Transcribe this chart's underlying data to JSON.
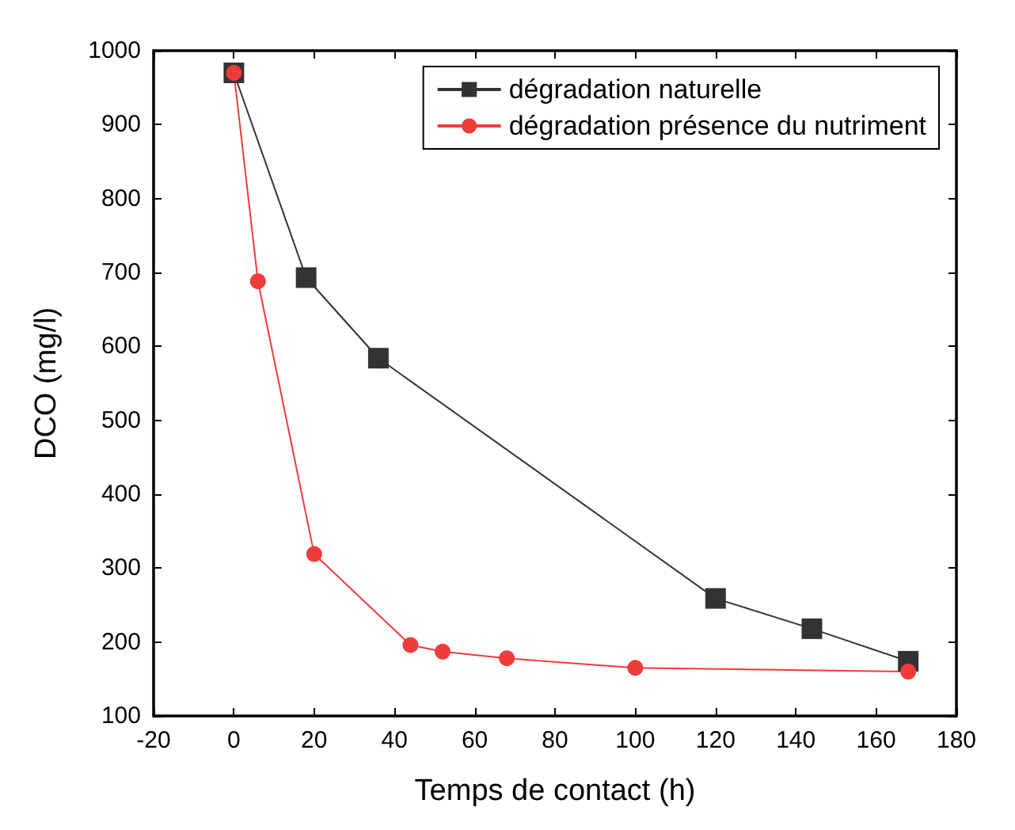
{
  "chart_data": {
    "type": "line",
    "xlabel": "Temps de contact (h)",
    "ylabel": "DCO (mg/l)",
    "xlim": [
      -20,
      180
    ],
    "xticks": [
      -20,
      0,
      20,
      40,
      60,
      80,
      100,
      120,
      140,
      160,
      180
    ],
    "ylim": [
      100,
      1000
    ],
    "yticks": [
      100,
      200,
      300,
      400,
      500,
      600,
      700,
      800,
      900,
      1000
    ],
    "grid": false,
    "legend": "top right",
    "line_style": "solid",
    "series": [
      {
        "name": "dégradation naturelle",
        "color": "#333333",
        "marker": "square",
        "x": [
          0,
          18,
          36,
          120,
          144,
          168
        ],
        "values": [
          970,
          693,
          584,
          259,
          218,
          174
        ]
      },
      {
        "name": "dégradation présence du nutriment",
        "color": "#ee3b3b",
        "marker": "circle",
        "x": [
          0,
          6,
          20,
          44,
          52,
          68,
          100,
          168
        ],
        "values": [
          970,
          688,
          319,
          196,
          187,
          178,
          165,
          160
        ]
      }
    ]
  }
}
